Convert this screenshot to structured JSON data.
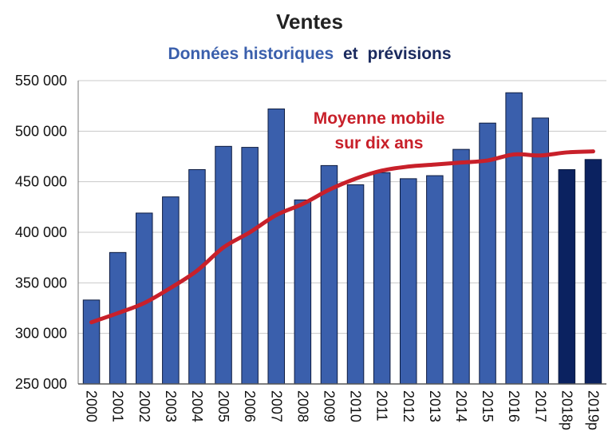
{
  "chart_data": {
    "type": "bar",
    "title": "Ventes",
    "subtitle": {
      "part1": "Données historiques",
      "part2": "et",
      "part3": "prévisions"
    },
    "categories": [
      "2000",
      "2001",
      "2002",
      "2003",
      "2004",
      "2005",
      "2006",
      "2007",
      "2008",
      "2009",
      "2010",
      "2011",
      "2012",
      "2013",
      "2014",
      "2015",
      "2016",
      "2017",
      "2018p",
      "2019p"
    ],
    "series": [
      {
        "type": "bar",
        "values": [
          333000,
          380000,
          419000,
          435000,
          462000,
          485000,
          484000,
          522000,
          432000,
          466000,
          447000,
          459000,
          453000,
          456000,
          482000,
          508000,
          538000,
          513000,
          462000,
          472000
        ],
        "forecast_flags": [
          false,
          false,
          false,
          false,
          false,
          false,
          false,
          false,
          false,
          false,
          false,
          false,
          false,
          false,
          false,
          false,
          false,
          false,
          true,
          true
        ]
      },
      {
        "name": "Moyenne mobile sur dix ans",
        "type": "line",
        "values": [
          311000,
          320000,
          330000,
          345000,
          362000,
          385000,
          400000,
          417000,
          428000,
          442000,
          453000,
          461000,
          465000,
          467000,
          469000,
          471000,
          477000,
          476000,
          479000,
          480000
        ]
      }
    ],
    "annotation": {
      "line1": "Moyenne mobile",
      "line2": "sur dix ans"
    },
    "yticks": [
      "250 000",
      "300 000",
      "350 000",
      "400 000",
      "450 000",
      "500 000",
      "550 000"
    ],
    "ylim": [
      250000,
      550000
    ],
    "grid": true,
    "legend": "none",
    "colors": {
      "historical": "#3A5FAC",
      "forecast": "#0B2260",
      "moving_average": "#C8202A",
      "subtitle_blue": "#3A5FAC",
      "subtitle_dark": "#1A2A5E",
      "annotation": "#C8202A",
      "grid": "#C8C8C8"
    }
  }
}
